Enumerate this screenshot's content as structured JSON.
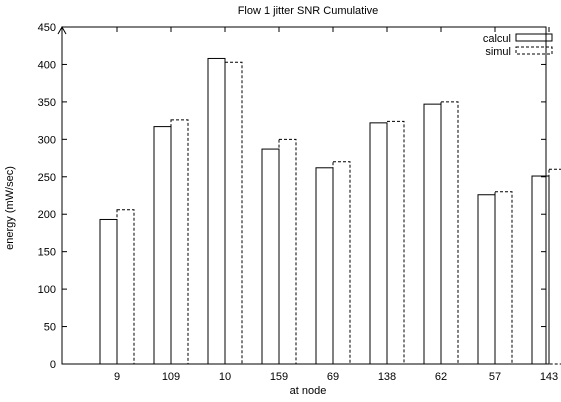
{
  "chart_data": {
    "type": "bar",
    "title": "Flow 1 jitter SNR Cumulative",
    "xlabel": "at node",
    "ylabel": "energy (mW/sec)",
    "categories": [
      "9",
      "109",
      "10",
      "159",
      "69",
      "138",
      "62",
      "57",
      "143"
    ],
    "series": [
      {
        "name": "calcul",
        "values": [
          193,
          317,
          408,
          287,
          262,
          322,
          347,
          226,
          251
        ],
        "style": "solid"
      },
      {
        "name": "simul",
        "values": [
          206,
          326,
          403,
          300,
          270,
          324,
          350,
          230,
          260
        ],
        "style": "dashed"
      }
    ],
    "ylim": [
      0,
      450
    ],
    "yticks": [
      0,
      50,
      100,
      150,
      200,
      250,
      300,
      350,
      400,
      450
    ],
    "grid": false,
    "legend_position": "top-right"
  }
}
